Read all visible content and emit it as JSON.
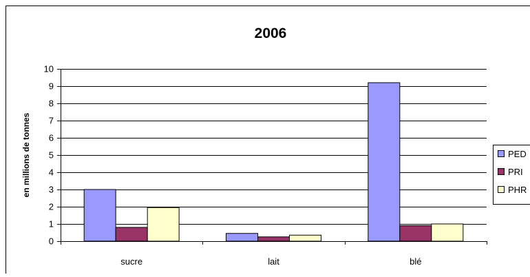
{
  "chart_data": {
    "type": "bar",
    "title": "2006",
    "ylabel": "en millions de tonnes",
    "xlabel": "",
    "categories": [
      "sucre",
      "lait",
      "blé"
    ],
    "ylim": [
      0,
      10
    ],
    "yticks": [
      "0",
      "1",
      "2",
      "3",
      "4",
      "5",
      "6",
      "7",
      "8",
      "9",
      "10"
    ],
    "grid": true,
    "legend": "right",
    "series": [
      {
        "name": "PED",
        "legend_label": "PED",
        "color": "#9999ff",
        "values": [
          3.0,
          0.45,
          9.2
        ]
      },
      {
        "name": "PRI",
        "legend_label": "PRI",
        "color": "#993366",
        "values": [
          0.8,
          0.25,
          0.9
        ]
      },
      {
        "name": "PHR",
        "legend_label": "PHR",
        "color": "#ffffcc",
        "values": [
          1.95,
          0.35,
          1.0
        ]
      }
    ]
  }
}
